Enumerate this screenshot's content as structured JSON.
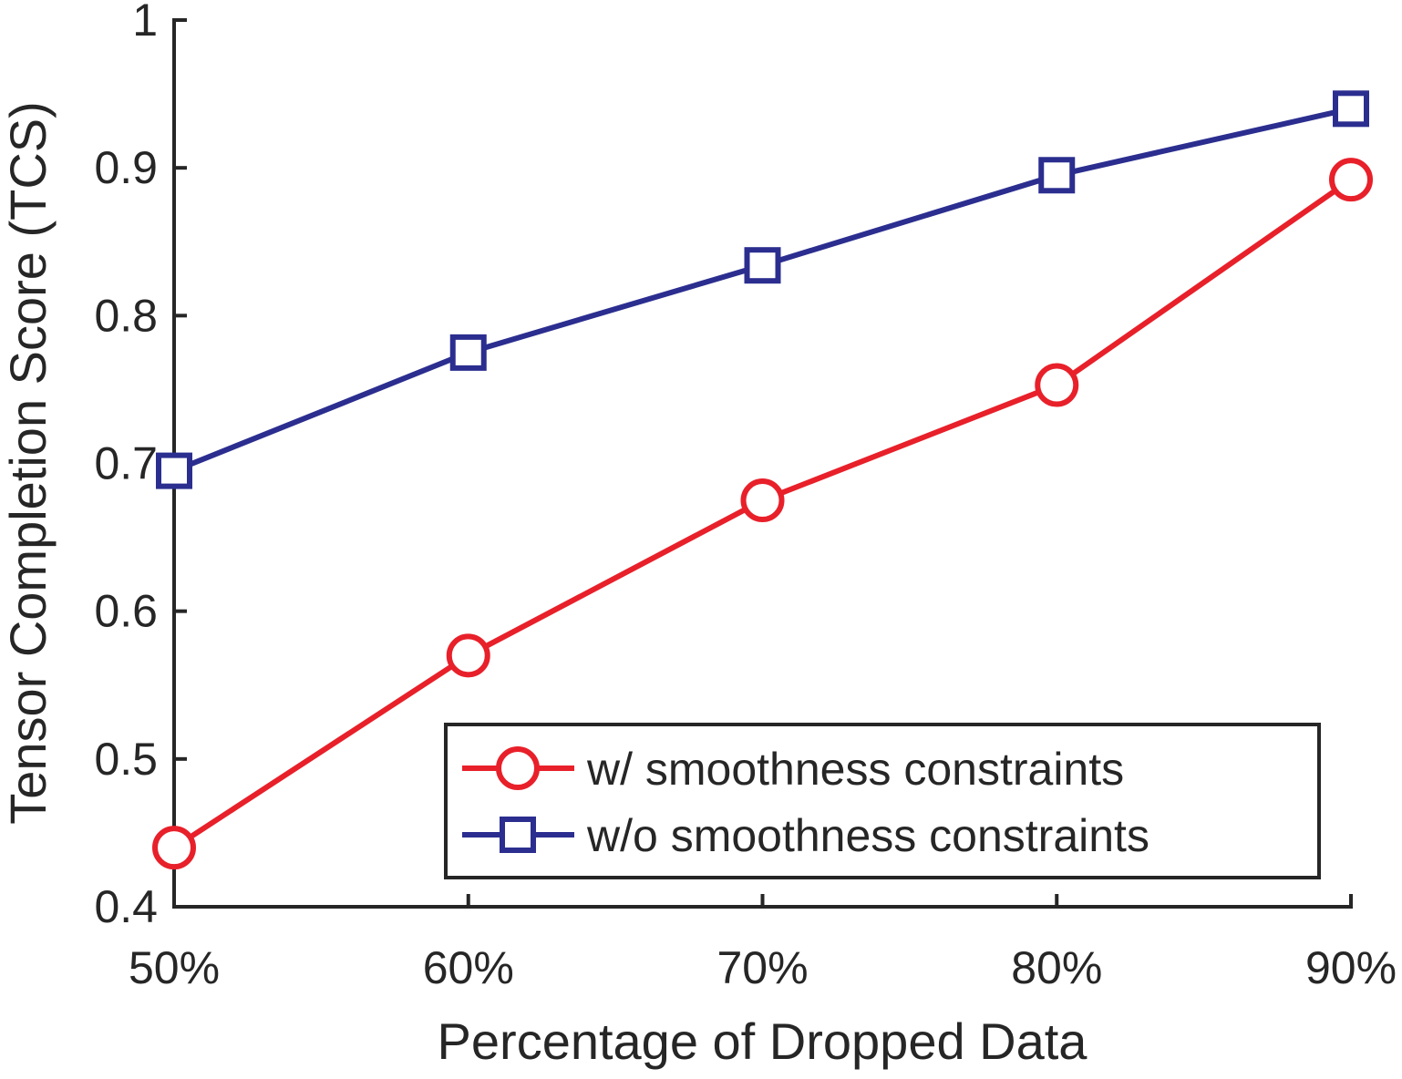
{
  "chart_data": {
    "type": "line",
    "title": "",
    "xlabel": "Percentage of Dropped Data",
    "ylabel": "Tensor Completion Score (TCS)",
    "categories": [
      "50%",
      "60%",
      "70%",
      "80%",
      "90%"
    ],
    "x": [
      50,
      60,
      70,
      80,
      90
    ],
    "xlim": [
      50,
      90
    ],
    "ylim": [
      0.4,
      1.0
    ],
    "yticks": [
      0.4,
      0.5,
      0.6,
      0.7,
      0.8,
      0.9,
      1.0
    ],
    "ytick_labels": [
      "0.4",
      "0.5",
      "0.6",
      "0.7",
      "0.8",
      "0.9",
      "1"
    ],
    "grid": false,
    "legend_position": "bottom-right",
    "series": [
      {
        "name": "w/ smoothness constraints",
        "values": [
          0.44,
          0.57,
          0.675,
          0.753,
          0.892
        ],
        "color": "#e8202a",
        "marker": "circle"
      },
      {
        "name": "w/o smoothness constraints",
        "values": [
          0.695,
          0.775,
          0.834,
          0.895,
          0.94
        ],
        "color": "#2b2e8f",
        "marker": "square"
      }
    ]
  }
}
